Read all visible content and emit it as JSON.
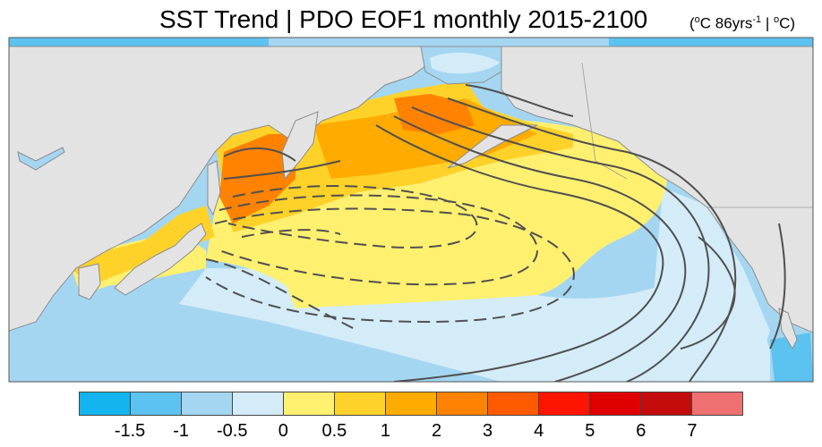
{
  "title": {
    "main": "SST Trend | PDO EOF1 monthly 2015-2100",
    "units_prefix": "(",
    "units_deg1": "o",
    "units_mid": "C 86yrs",
    "units_exp": "-1",
    "units_sep": " | ",
    "units_deg2": "o",
    "units_end": "C)"
  },
  "colors": {
    "land": "#e3e3e3",
    "coast": "#8c8c8c",
    "contour": "#505050",
    "frame": "#555555"
  },
  "colorbar": {
    "swatches": [
      "#14b4f0",
      "#5cc2f0",
      "#a4d6f2",
      "#d4ecf8",
      "#fff070",
      "#ffd22a",
      "#ffab00",
      "#ff8200",
      "#ff5a00",
      "#ff1400",
      "#e00000",
      "#c40c0c",
      "#ef7070"
    ],
    "labels": [
      "-1.5",
      "-1",
      "-0.5",
      "0",
      "0.5",
      "1",
      "2",
      "3",
      "4",
      "5",
      "6",
      "7"
    ]
  }
}
